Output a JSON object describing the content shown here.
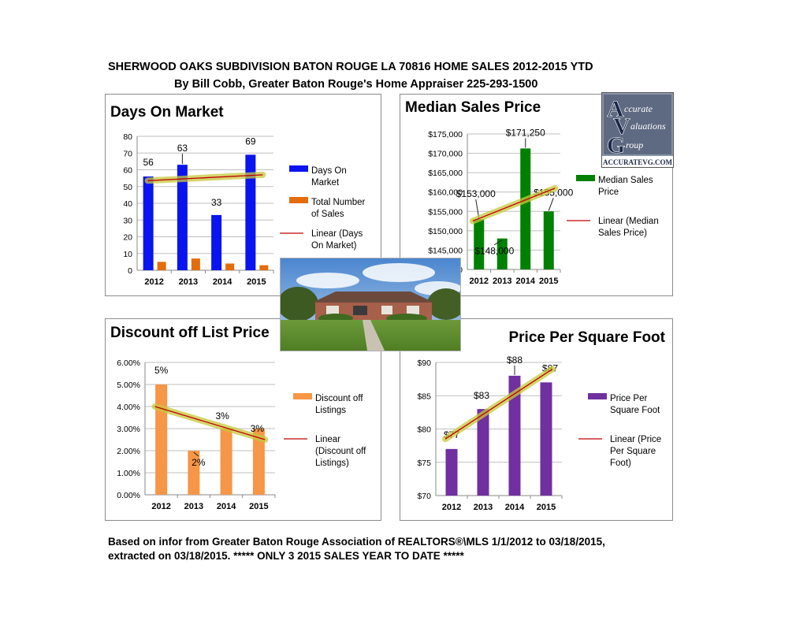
{
  "header": {
    "line1": "SHERWOOD OAKS SUBDIVISION BATON ROUGE LA 70816 HOME SALES 2012-2015 YTD",
    "line2": "By Bill Cobb, Greater Baton Rouge's Home Appraiser 225-293-1500"
  },
  "logo": {
    "letter_a": "A",
    "text_a": "ccurate",
    "letter_v": "V",
    "text_v": "aluations",
    "letter_g": "G",
    "text_g": "roup",
    "url": "ACCURATEVG.COM"
  },
  "footer": {
    "line1": "Based on infor from Greater Baton Rouge Association of REALTORS®\\MLS 1/1/2012 to 03/18/2015,",
    "line2": "extracted on 03/18/2015.      ***** ONLY 3 2015 SALES YEAR TO DATE *****"
  },
  "colors": {
    "blue": "#0a14f0",
    "orange_small": "#e46c0a",
    "green": "#008000",
    "light_orange": "#f79646",
    "purple": "#7030a0",
    "trend_line": "#c00000",
    "trend_glow": "#c8c83c"
  },
  "chart_data": [
    {
      "type": "bar",
      "title": "Days On Market",
      "categories": [
        "2012",
        "2013",
        "2014",
        "2015"
      ],
      "ylim": [
        0,
        80
      ],
      "yticks": [
        "0",
        "10",
        "20",
        "30",
        "40",
        "50",
        "60",
        "70",
        "80"
      ],
      "series": [
        {
          "name": "Days On Market",
          "values": [
            56,
            63,
            33,
            69
          ],
          "labels": [
            "56",
            "63",
            "33",
            "69"
          ]
        },
        {
          "name": "Total Number of Sales",
          "values": [
            5,
            7,
            4,
            3
          ]
        }
      ],
      "trendline": {
        "name": "Linear (Days On Market)",
        "start": 53.5,
        "end": 57
      },
      "legend": [
        "Days On Market",
        "Total Number of Sales",
        "Linear (Days On Market)"
      ],
      "legend_position": "right",
      "grid": true
    },
    {
      "type": "bar",
      "title": "Median Sales Price",
      "categories": [
        "2012",
        "2013",
        "2014",
        "2015"
      ],
      "ylim": [
        140000,
        175000
      ],
      "yticks": [
        "$140,000",
        "$145,000",
        "$150,000",
        "$155,000",
        "$160,000",
        "$165,000",
        "$170,000",
        "$175,000"
      ],
      "series": [
        {
          "name": "Median Sales Price",
          "values": [
            153000,
            148000,
            171250,
            155000
          ],
          "labels": [
            "$153,000",
            "$148,000",
            "$171,250",
            "$155,000"
          ]
        }
      ],
      "trendline": {
        "name": "Linear (Median Sales Price)",
        "start": 152500,
        "end": 161000
      },
      "legend": [
        "Median Sales Price",
        "Linear (Median Sales Price)"
      ],
      "legend_position": "right",
      "grid": true
    },
    {
      "type": "bar",
      "title": "Discount off List Price",
      "categories": [
        "2012",
        "2013",
        "2014",
        "2015"
      ],
      "ylim": [
        0,
        0.06
      ],
      "yticks": [
        "0.00%",
        "1.00%",
        "2.00%",
        "3.00%",
        "4.00%",
        "5.00%",
        "6.00%"
      ],
      "series": [
        {
          "name": "Discount off Listings",
          "values": [
            0.05,
            0.02,
            0.03,
            0.03
          ],
          "labels": [
            "5%",
            "2%",
            "3%",
            "3%"
          ]
        }
      ],
      "trendline": {
        "name": "Linear (Discount off Listings)",
        "start": 0.04,
        "end": 0.025
      },
      "legend": [
        "Discount off Listings",
        "Linear (Discount off Listings)"
      ],
      "legend_position": "right",
      "grid": true
    },
    {
      "type": "bar",
      "title": "Price Per Square Foot",
      "categories": [
        "2012",
        "2013",
        "2014",
        "2015"
      ],
      "ylim": [
        70,
        90
      ],
      "yticks": [
        "$70",
        "$75",
        "$80",
        "$85",
        "$90"
      ],
      "series": [
        {
          "name": "Price Per Square Foot",
          "values": [
            77,
            83,
            88,
            87
          ],
          "labels": [
            "$77",
            "$83",
            "$88",
            "$87"
          ]
        }
      ],
      "trendline": {
        "name": "Linear (Price Per Square Foot)",
        "start": 78.5,
        "end": 89
      },
      "legend": [
        "Price Per Square Foot",
        "Linear (Price Per Square Foot)"
      ],
      "legend_position": "right",
      "grid": true
    }
  ]
}
